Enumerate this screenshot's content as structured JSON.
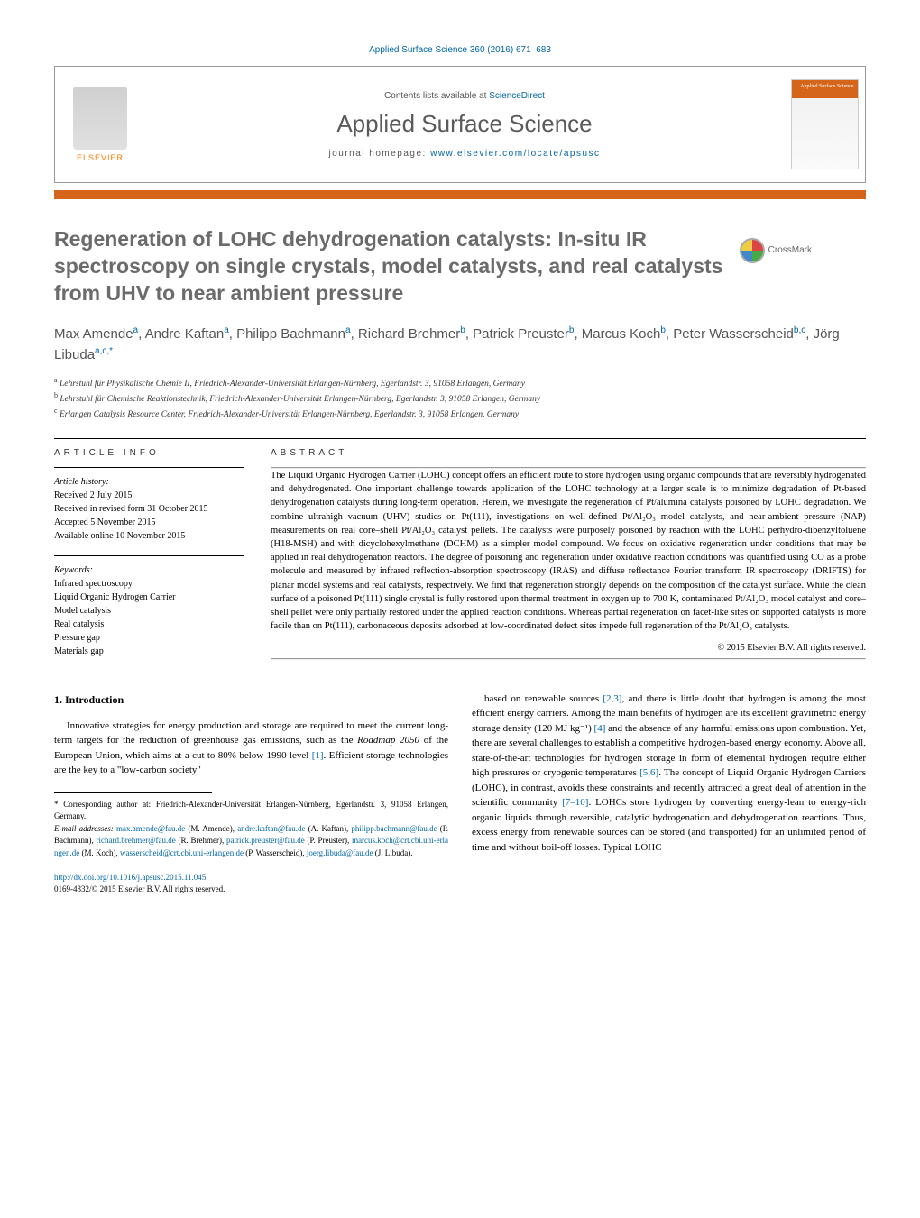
{
  "header": {
    "citation": "Applied Surface Science 360 (2016) 671–683",
    "contents_prefix": "Contents lists available at ",
    "contents_link": "ScienceDirect",
    "journal_title": "Applied Surface Science",
    "homepage_prefix": "journal homepage: ",
    "homepage_url": "www.elsevier.com/locate/apsusc",
    "elsevier": "ELSEVIER",
    "cover_label": "Applied\nSurface\nScience",
    "crossmark": "CrossMark"
  },
  "article": {
    "title": "Regeneration of LOHC dehydrogenation catalysts: In-situ IR spectroscopy on single crystals, model catalysts, and real catalysts from UHV to near ambient pressure",
    "authors_html": "Max Amende<sup>a</sup>, Andre Kaftan<sup>a</sup>, Philipp Bachmann<sup>a</sup>, Richard Brehmer<sup>b</sup>, Patrick Preuster<sup>b</sup>, Marcus Koch<sup>b</sup>, Peter Wasserscheid<sup>b,c</sup>, Jörg Libuda<sup>a,c,*</sup>",
    "affiliations": [
      {
        "sup": "a",
        "text": "Lehrstuhl für Physikalische Chemie II, Friedrich-Alexander-Universität Erlangen-Nürnberg, Egerlandstr. 3, 91058 Erlangen, Germany"
      },
      {
        "sup": "b",
        "text": "Lehrstuhl für Chemische Reaktionstechnik, Friedrich-Alexander-Universität Erlangen-Nürnberg, Egerlandstr. 3, 91058 Erlangen, Germany"
      },
      {
        "sup": "c",
        "text": "Erlangen Catalysis Resource Center, Friedrich-Alexander-Universität Erlangen-Nürnberg, Egerlandstr. 3, 91058 Erlangen, Germany"
      }
    ]
  },
  "info": {
    "article_info_label": "article info",
    "abstract_label": "abstract",
    "history_label": "Article history:",
    "history": [
      "Received 2 July 2015",
      "Received in revised form 31 October 2015",
      "Accepted 5 November 2015",
      "Available online 10 November 2015"
    ],
    "keywords_label": "Keywords:",
    "keywords": [
      "Infrared spectroscopy",
      "Liquid Organic Hydrogen Carrier",
      "Model catalysis",
      "Real catalysis",
      "Pressure gap",
      "Materials gap"
    ],
    "abstract": "The Liquid Organic Hydrogen Carrier (LOHC) concept offers an efficient route to store hydrogen using organic compounds that are reversibly hydrogenated and dehydrogenated. One important challenge towards application of the LOHC technology at a larger scale is to minimize degradation of Pt-based dehydrogenation catalysts during long-term operation. Herein, we investigate the regeneration of Pt/alumina catalysts poisoned by LOHC degradation. We combine ultrahigh vacuum (UHV) studies on Pt(111), investigations on well-defined Pt/Al₂O₃ model catalysts, and near-ambient pressure (NAP) measurements on real core–shell Pt/Al₂O₃ catalyst pellets. The catalysts were purposely poisoned by reaction with the LOHC perhydro-dibenzyltoluene (H18-MSH) and with dicyclohexylmethane (DCHM) as a simpler model compound. We focus on oxidative regeneration under conditions that may be applied in real dehydrogenation reactors. The degree of poisoning and regeneration under oxidative reaction conditions was quantified using CO as a probe molecule and measured by infrared reflection-absorption spectroscopy (IRAS) and diffuse reflectance Fourier transform IR spectroscopy (DRIFTS) for planar model systems and real catalysts, respectively. We find that regeneration strongly depends on the composition of the catalyst surface. While the clean surface of a poisoned Pt(111) single crystal is fully restored upon thermal treatment in oxygen up to 700 K, contaminated Pt/Al₂O₃ model catalyst and core–shell pellet were only partially restored under the applied reaction conditions. Whereas partial regeneration on facet-like sites on supported catalysts is more facile than on Pt(111), carbonaceous deposits adsorbed at low-coordinated defect sites impede full regeneration of the Pt/Al₂O₃ catalysts.",
    "copyright": "© 2015 Elsevier B.V. All rights reserved."
  },
  "body": {
    "section_heading": "1. Introduction",
    "col1_p1": "Innovative strategies for energy production and storage are required to meet the current long-term targets for the reduction of greenhouse gas emissions, such as the Roadmap 2050 of the European Union, which aims at a cut to 80% below 1990 level [1]. Efficient storage technologies are the key to a \"low-carbon society\"",
    "col2_p1": "based on renewable sources [2,3], and there is little doubt that hydrogen is among the most efficient energy carriers. Among the main benefits of hydrogen are its excellent gravimetric energy storage density (120 MJ kg⁻¹) [4] and the absence of any harmful emissions upon combustion. Yet, there are several challenges to establish a competitive hydrogen-based energy economy. Above all, state-of-the-art technologies for hydrogen storage in form of elemental hydrogen require either high pressures or cryogenic temperatures [5,6]. The concept of Liquid Organic Hydrogen Carriers (LOHC), in contrast, avoids these constraints and recently attracted a great deal of attention in the scientific community [7–10]. LOHCs store hydrogen by converting energy-lean to energy-rich organic liquids through reversible, catalytic hydrogenation and dehydrogenation reactions. Thus, excess energy from renewable sources can be stored (and transported) for an unlimited period of time and without boil-off losses. Typical LOHC"
  },
  "footnotes": {
    "corresponding": "* Corresponding author at: Friedrich-Alexander-Universität Erlangen-Nürnberg, Egerlandstr. 3, 91058 Erlangen, Germany.",
    "email_label": "E-mail addresses:",
    "emails": [
      {
        "addr": "max.amende@fau.de",
        "who": "(M. Amende)"
      },
      {
        "addr": "andre.kaftan@fau.de",
        "who": "(A. Kaftan)"
      },
      {
        "addr": "philipp.bachmann@fau.de",
        "who": "(P. Bachmann)"
      },
      {
        "addr": "richard.brehmer@fau.de",
        "who": "(R. Brehmer)"
      },
      {
        "addr": "patrick.preuster@fau.de",
        "who": "(P. Preuster)"
      },
      {
        "addr": "marcus.koch@crt.cbi.uni-erlangen.de",
        "who": "(M. Koch)"
      },
      {
        "addr": "wasserscheid@crt.cbi.uni-erlangen.de",
        "who": "(P. Wasserscheid)"
      },
      {
        "addr": "joerg.libuda@fau.de",
        "who": "(J. Libuda)."
      }
    ],
    "doi": "http://dx.doi.org/10.1016/j.apsusc.2015.11.045",
    "issn_line": "0169-4332/© 2015 Elsevier B.V. All rights reserved."
  },
  "colors": {
    "link": "#0066a5",
    "accent": "#d4651a",
    "title_gray": "#6b6b6b"
  }
}
